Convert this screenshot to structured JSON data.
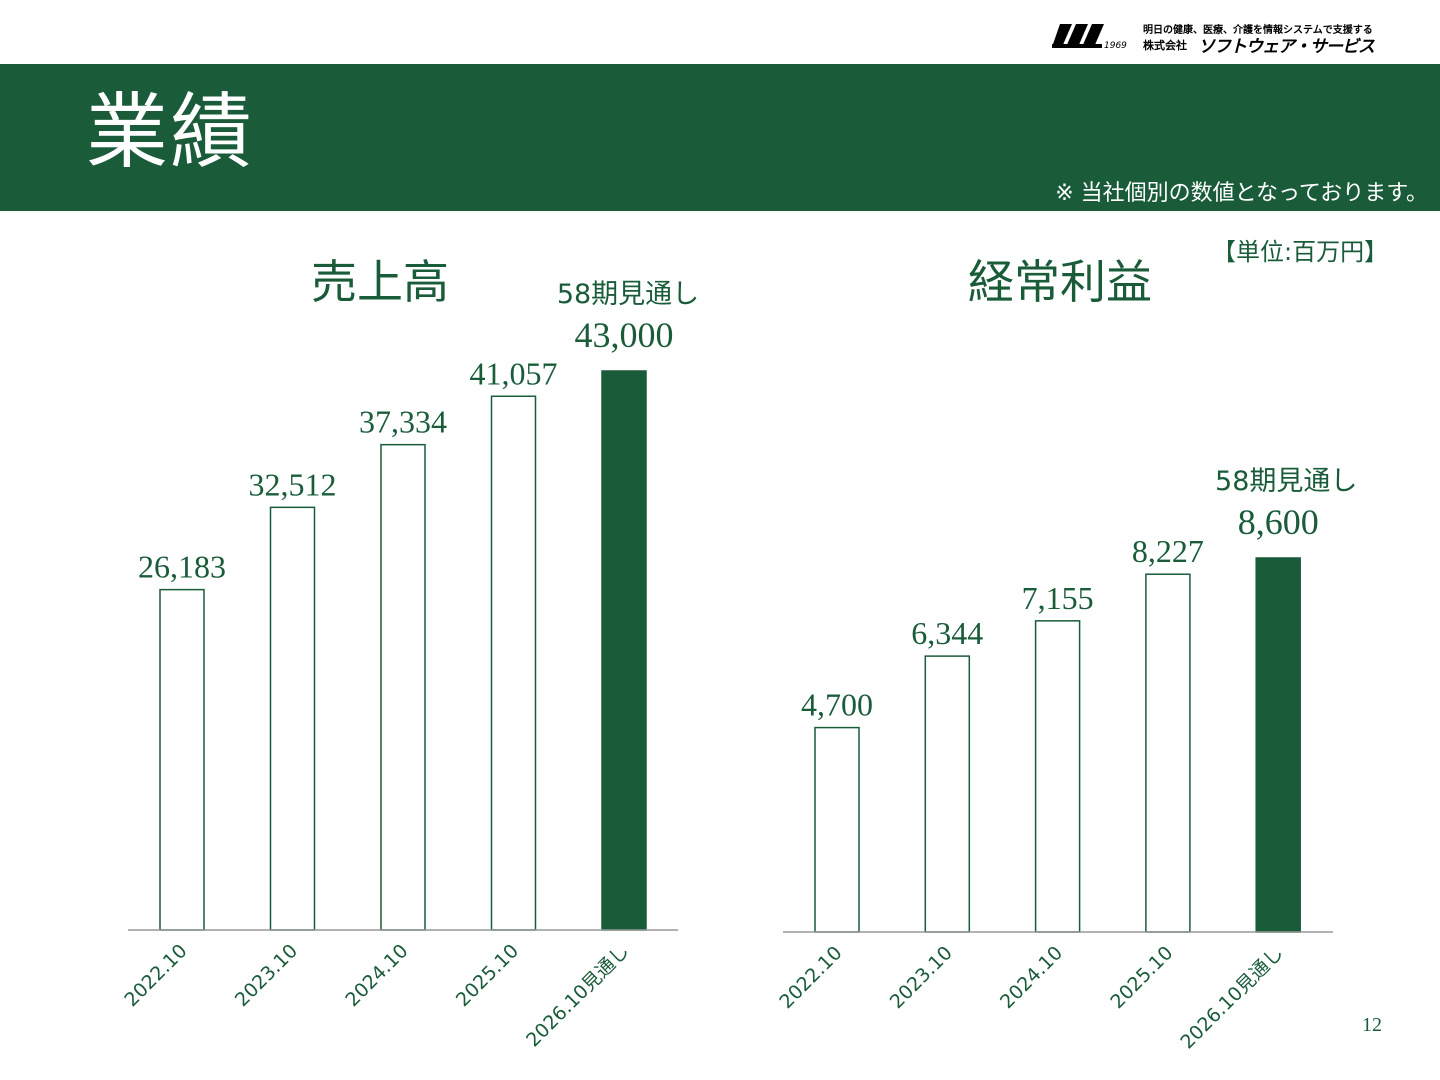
{
  "header": {
    "title": "業績",
    "note": "※ 当社個別の数値となっております。",
    "unit": "【単位:百万円】"
  },
  "logo": {
    "mark": "1969",
    "tagline": "明日の健康、医療、介護を情報システムで支援する",
    "company_prefix": "株式会社",
    "company_name": "ソフトウェア・サービス"
  },
  "page_number": "12",
  "colors": {
    "brand": "#1a5c3a",
    "bar_outline": "#1a5c3a",
    "axis": "#999999"
  },
  "chart_data": [
    {
      "type": "bar",
      "title": "売上高",
      "categories": [
        "2022.10",
        "2023.10",
        "2024.10",
        "2025.10",
        "2026.10見通し"
      ],
      "values": [
        26183,
        32512,
        37334,
        41057,
        43000
      ],
      "labels": [
        "26,183",
        "32,512",
        "37,334",
        "41,057",
        "43,000"
      ],
      "forecast_index": 4,
      "forecast_label": "58期見通し",
      "ylim": [
        0,
        43000
      ],
      "grid": false
    },
    {
      "type": "bar",
      "title": "経常利益",
      "categories": [
        "2022.10",
        "2023.10",
        "2024.10",
        "2025.10",
        "2026.10見通し"
      ],
      "values": [
        4700,
        6344,
        7155,
        8227,
        8600
      ],
      "labels": [
        "4,700",
        "6,344",
        "7,155",
        "8,227",
        "8,600"
      ],
      "forecast_index": 4,
      "forecast_label": "58期見通し",
      "ylim": [
        0,
        8600
      ],
      "grid": false
    }
  ]
}
